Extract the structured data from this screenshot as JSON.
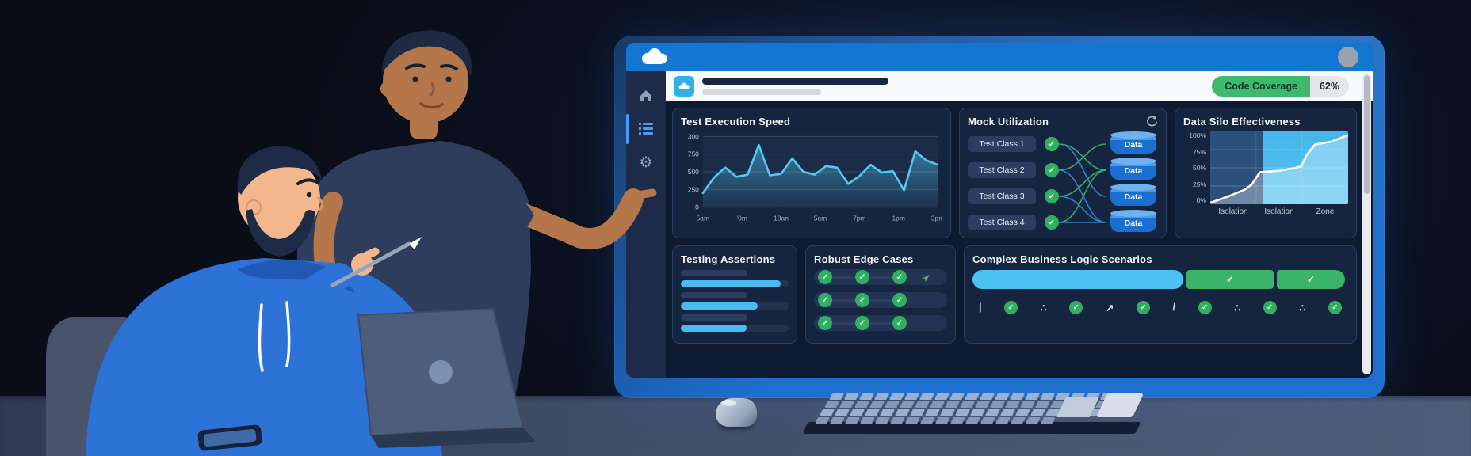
{
  "header": {
    "logo_icon": "salesforce-cloud-icon",
    "app_icon": "cloud-app-icon",
    "avatar_icon": "user-avatar",
    "coverage_label": "Code Coverage",
    "coverage_value": "62%"
  },
  "sidebar": {
    "items": [
      {
        "icon": "home-icon",
        "active": false
      },
      {
        "icon": "list-icon",
        "active": true
      },
      {
        "icon": "gear-icon",
        "active": false
      }
    ]
  },
  "panels": {
    "speed": {
      "title": "Test Execution Speed"
    },
    "mock": {
      "title": "Mock Utilization",
      "refresh_icon": "refresh-icon",
      "classes": [
        "Test Class 1",
        "Test Class 2",
        "Test Class 3",
        "Test Class 4"
      ],
      "data_nodes": [
        "Data",
        "Data",
        "Data",
        "Data"
      ],
      "edges": [
        [
          1,
          2,
          "green"
        ],
        [
          1,
          3,
          "blue"
        ],
        [
          2,
          1,
          "green"
        ],
        [
          2,
          4,
          "blue"
        ],
        [
          3,
          2,
          "green"
        ],
        [
          3,
          4,
          "blue"
        ],
        [
          4,
          2,
          "green"
        ],
        [
          4,
          4,
          "blue"
        ]
      ]
    },
    "silo": {
      "title": "Data Silo Effectiveness"
    },
    "assertions": {
      "title": "Testing Assertions",
      "bars_pct": [
        93,
        71,
        61
      ],
      "label_width_pct": 62
    },
    "edge_cases": {
      "title": "Robust Edge Cases",
      "rows": [
        {
          "check_positions_pct": [
            3,
            31,
            59
          ],
          "arrow_pct": 80
        },
        {
          "check_positions_pct": [
            3,
            31,
            59
          ],
          "arrow_pct": null
        },
        {
          "check_positions_pct": [
            3,
            31,
            59
          ],
          "arrow_pct": null
        }
      ]
    },
    "complex": {
      "title": "Complex Business Logic Scenarios",
      "segments": [
        {
          "kind": "progress",
          "pct": 57
        },
        {
          "kind": "check",
          "pct": 24
        },
        {
          "kind": "check",
          "pct": 19
        }
      ],
      "icon_row": [
        "tick-mark",
        "check",
        "dots",
        "check",
        "arrow-up-right",
        "check",
        "slash",
        "check",
        "dots",
        "check",
        "dots",
        "check"
      ]
    }
  },
  "chart_data": [
    {
      "type": "area",
      "title": "Test Execution Speed",
      "x_tick_labels": [
        "5am",
        "'0m",
        "18an",
        "5am",
        "7pm",
        "1pm",
        "3pm"
      ],
      "y_tick_labels": [
        "0",
        "250",
        "500",
        "750",
        "300"
      ],
      "ylim": [
        0,
        1000
      ],
      "values": [
        200,
        420,
        560,
        430,
        460,
        880,
        450,
        470,
        690,
        500,
        460,
        580,
        560,
        330,
        440,
        600,
        490,
        510,
        240,
        790,
        660,
        600
      ],
      "line_color": "#54c9f2",
      "grid": true,
      "legend": false
    },
    {
      "type": "area",
      "title": "Data Silo Effectiveness",
      "x_tick_labels": [
        "Isolation",
        "Isolation",
        "Zone"
      ],
      "y_tick_labels": [
        "0%",
        "25%",
        "50%",
        "75%",
        "100%"
      ],
      "ylim": [
        0,
        100
      ],
      "points": [
        [
          0,
          2
        ],
        [
          12,
          10
        ],
        [
          25,
          20
        ],
        [
          30,
          27
        ],
        [
          36,
          44
        ],
        [
          50,
          46
        ],
        [
          62,
          50
        ],
        [
          66,
          52
        ],
        [
          70,
          68
        ],
        [
          76,
          82
        ],
        [
          88,
          86
        ],
        [
          100,
          95
        ]
      ],
      "highlight_split_pct": 38,
      "line_color": "#ffffff",
      "grid": true,
      "legend": false
    }
  ],
  "colors": {
    "app_blue": "#1277d3",
    "cyan": "#4cc2f2",
    "green": "#2fb061",
    "coverage_green": "#3eba6d",
    "data_blue": "#1e79d6",
    "edge_green_line": "#39b86b",
    "edge_blue_line": "#3e87d9"
  }
}
